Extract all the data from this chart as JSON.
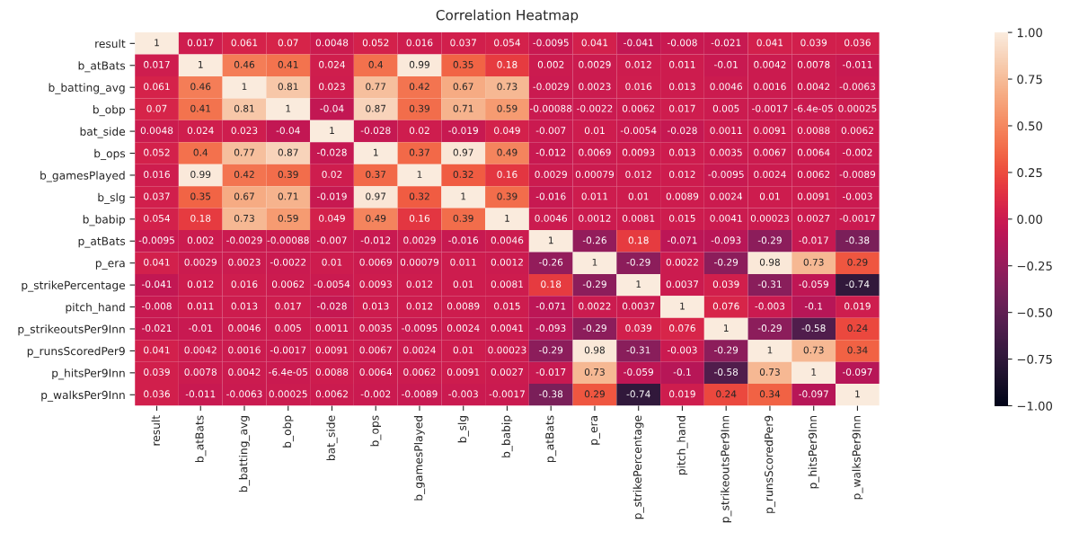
{
  "chart_data": {
    "type": "heatmap",
    "title": "Correlation Heatmap",
    "categories": [
      "result",
      "b_atBats",
      "b_batting_avg",
      "b_obp",
      "bat_side",
      "b_ops",
      "b_gamesPlayed",
      "b_slg",
      "b_babip",
      "p_atBats",
      "p_era",
      "p_strikePercentage",
      "pitch_hand",
      "p_strikeoutsPer9Inn",
      "p_runsScoredPer9",
      "p_hitsPer9Inn",
      "p_walksPer9Inn"
    ],
    "y_categories": [
      "result",
      "b_atBats",
      "b_batting_avg",
      "b_obp",
      "bat_side",
      "b_ops",
      "b_gamesPlayed",
      "b_slg",
      "b_babip",
      "p_atBats",
      "p_era",
      "p_strikePercentage",
      "pitch_hand",
      "p_strikeoutsPer9Inn",
      "p_runsScoredPer9",
      "p_hitsPer9Inn",
      "p_walksPer9Inn"
    ],
    "cells": [
      [
        1,
        0.017,
        0.061,
        0.07,
        0.0048,
        0.052,
        0.016,
        0.037,
        0.054,
        -0.0095,
        0.041,
        -0.041,
        -0.008,
        -0.021,
        0.041,
        0.039,
        0.036
      ],
      [
        0.017,
        1,
        0.46,
        0.41,
        0.024,
        0.4,
        0.99,
        0.35,
        0.18,
        0.002,
        0.0029,
        0.012,
        0.011,
        -0.01,
        0.0042,
        0.0078,
        -0.011
      ],
      [
        0.061,
        0.46,
        1,
        0.81,
        0.023,
        0.77,
        0.42,
        0.67,
        0.73,
        -0.0029,
        0.0023,
        0.016,
        0.013,
        0.0046,
        0.0016,
        0.0042,
        -0.0063
      ],
      [
        0.07,
        0.41,
        0.81,
        1,
        -0.04,
        0.87,
        0.39,
        0.71,
        0.59,
        -0.00088,
        -0.0022,
        0.0062,
        0.017,
        0.005,
        -0.0017,
        -6.4e-05,
        0.00025
      ],
      [
        0.0048,
        0.024,
        0.023,
        -0.04,
        1,
        -0.028,
        0.02,
        -0.019,
        0.049,
        -0.007,
        0.01,
        -0.0054,
        -0.028,
        0.0011,
        0.0091,
        0.0088,
        0.0062
      ],
      [
        0.052,
        0.4,
        0.77,
        0.87,
        -0.028,
        1,
        0.37,
        0.97,
        0.49,
        -0.012,
        0.0069,
        0.0093,
        0.013,
        0.0035,
        0.0067,
        0.0064,
        -0.002
      ],
      [
        0.016,
        0.99,
        0.42,
        0.39,
        0.02,
        0.37,
        1,
        0.32,
        0.16,
        0.0029,
        0.00079,
        0.012,
        0.012,
        -0.0095,
        0.0024,
        0.0062,
        -0.0089
      ],
      [
        0.037,
        0.35,
        0.67,
        0.71,
        -0.019,
        0.97,
        0.32,
        1,
        0.39,
        -0.016,
        0.011,
        0.01,
        0.0089,
        0.0024,
        0.01,
        0.0091,
        -0.003
      ],
      [
        0.054,
        0.18,
        0.73,
        0.59,
        0.049,
        0.49,
        0.16,
        0.39,
        1,
        0.0046,
        0.0012,
        0.0081,
        0.015,
        0.0041,
        0.00023,
        0.0027,
        -0.0017
      ],
      [
        -0.0095,
        0.002,
        -0.0029,
        -0.00088,
        -0.007,
        -0.012,
        0.0029,
        -0.016,
        0.0046,
        1,
        -0.26,
        0.18,
        -0.071,
        -0.093,
        -0.29,
        -0.017,
        -0.38
      ],
      [
        0.041,
        0.0029,
        0.0023,
        -0.0022,
        0.01,
        0.0069,
        0.00079,
        0.011,
        0.0012,
        -0.26,
        1,
        -0.29,
        0.0022,
        -0.29,
        0.98,
        0.73,
        0.29
      ],
      [
        -0.041,
        0.012,
        0.016,
        0.0062,
        -0.0054,
        0.0093,
        0.012,
        0.01,
        0.0081,
        0.18,
        -0.29,
        1,
        0.0037,
        0.039,
        -0.31,
        -0.059,
        -0.74
      ],
      [
        -0.008,
        0.011,
        0.013,
        0.017,
        -0.028,
        0.013,
        0.012,
        0.0089,
        0.015,
        -0.071,
        0.0022,
        0.0037,
        1,
        0.076,
        -0.003,
        -0.1,
        0.019
      ],
      [
        -0.021,
        -0.01,
        0.0046,
        0.005,
        0.0011,
        0.0035,
        -0.0095,
        0.0024,
        0.0041,
        -0.093,
        -0.29,
        0.039,
        0.076,
        1,
        -0.29,
        -0.58,
        0.24
      ],
      [
        0.041,
        0.0042,
        0.0016,
        -0.0017,
        0.0091,
        0.0067,
        0.0024,
        0.01,
        0.00023,
        -0.29,
        0.98,
        -0.31,
        -0.003,
        -0.29,
        1,
        0.73,
        0.34
      ],
      [
        0.039,
        0.0078,
        0.0042,
        -6.4e-05,
        0.0088,
        0.0064,
        0.0062,
        0.0091,
        0.0027,
        -0.017,
        0.73,
        -0.059,
        -0.1,
        -0.58,
        0.73,
        1,
        -0.097
      ],
      [
        0.036,
        -0.011,
        -0.0063,
        0.00025,
        0.0062,
        -0.002,
        -0.0089,
        -0.003,
        -0.0017,
        -0.38,
        0.29,
        -0.74,
        0.019,
        0.24,
        0.34,
        -0.097,
        1
      ]
    ],
    "data_labels": true,
    "clim": [
      -1,
      1
    ],
    "cticks": [
      {
        "value": -1,
        "label": "−1.00"
      },
      {
        "value": -0.75,
        "label": "−0.75"
      },
      {
        "value": -0.5,
        "label": "−0.50"
      },
      {
        "value": -0.25,
        "label": "−0.25"
      },
      {
        "value": 0,
        "label": "0.00"
      },
      {
        "value": 0.25,
        "label": "0.25"
      },
      {
        "value": 0.5,
        "label": "0.50"
      },
      {
        "value": 0.75,
        "label": "0.75"
      },
      {
        "value": 1,
        "label": "1.00"
      }
    ]
  }
}
